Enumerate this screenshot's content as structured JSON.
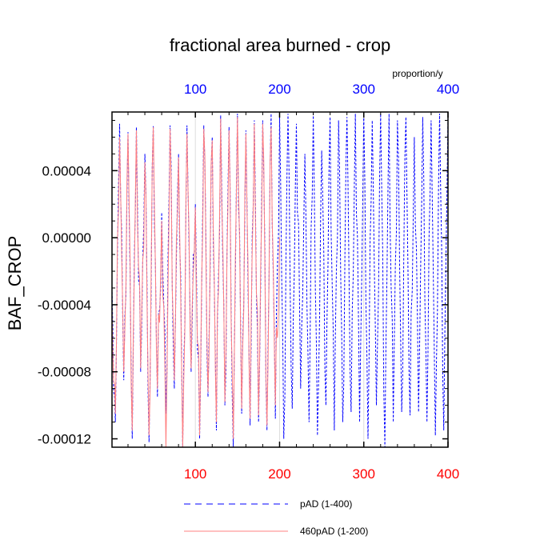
{
  "chart_data": {
    "type": "line",
    "title": "fractional area burned - crop",
    "ylabel": "BAF_CROP",
    "xlabel": "",
    "units_label": "proportion/y",
    "ylim": [
      -0.000125,
      7.5e-05
    ],
    "yticks": [
      {
        "value": 4e-05,
        "label": "0.00004"
      },
      {
        "value": 0.0,
        "label": "0.00000"
      },
      {
        "value": -4e-05,
        "label": "-0.00004"
      },
      {
        "value": -8e-05,
        "label": "-0.00008"
      },
      {
        "value": -0.00012,
        "label": "-0.00012"
      }
    ],
    "bottom_axis": {
      "range": [
        1,
        400
      ],
      "ticks": [
        {
          "value": 100,
          "label": "100"
        },
        {
          "value": 200,
          "label": "200"
        },
        {
          "value": 300,
          "label": "300"
        },
        {
          "value": 400,
          "label": "400"
        }
      ],
      "color": "#ff0000"
    },
    "top_axis": {
      "range": [
        1,
        400
      ],
      "ticks": [
        {
          "value": 100,
          "label": "100"
        },
        {
          "value": 200,
          "label": "200"
        },
        {
          "value": 300,
          "label": "300"
        },
        {
          "value": 400,
          "label": "400"
        }
      ],
      "color": "#0000ff"
    },
    "series": [
      {
        "name": "pAD (1-400)",
        "color": "#0000ff",
        "dash": "dashed",
        "x_range": [
          1,
          400
        ],
        "peaks": [
          [
            10,
            6.8e-05
          ],
          [
            20,
            6.3e-05
          ],
          [
            30,
            6.6e-05
          ],
          [
            40,
            5e-05
          ],
          [
            50,
            6.7e-05
          ],
          [
            60,
            1.5e-05
          ],
          [
            70,
            6.7e-05
          ],
          [
            80,
            5e-05
          ],
          [
            90,
            6.7e-05
          ],
          [
            100,
            2e-05
          ],
          [
            110,
            6.7e-05
          ],
          [
            120,
            6e-05
          ],
          [
            130,
            7.3e-05
          ],
          [
            140,
            6.6e-05
          ],
          [
            150,
            7.4e-05
          ],
          [
            160,
            6.4e-05
          ],
          [
            170,
            7e-05
          ],
          [
            180,
            7e-05
          ],
          [
            190,
            7.4e-05
          ],
          [
            200,
            7.2e-05
          ],
          [
            210,
            7.4e-05
          ],
          [
            220,
            6.8e-05
          ],
          [
            230,
            5e-05
          ],
          [
            240,
            7.4e-05
          ],
          [
            250,
            5.2e-05
          ],
          [
            260,
            7.2e-05
          ],
          [
            270,
            7e-05
          ],
          [
            280,
            7.2e-05
          ],
          [
            290,
            7.4e-05
          ],
          [
            300,
            7.4e-05
          ],
          [
            310,
            7e-05
          ],
          [
            320,
            7.4e-05
          ],
          [
            330,
            7.4e-05
          ],
          [
            340,
            7e-05
          ],
          [
            350,
            7.2e-05
          ],
          [
            360,
            6e-05
          ],
          [
            370,
            7.2e-05
          ],
          [
            380,
            7e-05
          ],
          [
            390,
            7.4e-05
          ],
          [
            400,
            7.2e-05
          ]
        ],
        "troughs": [
          [
            5,
            -0.00011
          ],
          [
            15,
            -8.5e-05
          ],
          [
            25,
            -0.00012
          ],
          [
            35,
            -8e-05
          ],
          [
            45,
            -0.000122
          ],
          [
            55,
            -9.5e-05
          ],
          [
            65,
            -0.000105
          ],
          [
            75,
            -9e-05
          ],
          [
            85,
            -0.000125
          ],
          [
            95,
            -8e-05
          ],
          [
            105,
            -0.00012
          ],
          [
            115,
            -9.5e-05
          ],
          [
            125,
            -0.000115
          ],
          [
            135,
            -0.0001
          ],
          [
            145,
            -0.000125
          ],
          [
            155,
            -0.000105
          ],
          [
            165,
            -0.000112
          ],
          [
            175,
            -0.00011
          ],
          [
            185,
            -0.000115
          ],
          [
            195,
            -0.000108
          ],
          [
            205,
            -0.00012
          ],
          [
            215,
            -0.000102
          ],
          [
            225,
            -9e-05
          ],
          [
            235,
            -0.00011
          ],
          [
            245,
            -0.000118
          ],
          [
            255,
            -0.0001
          ],
          [
            265,
            -0.000115
          ],
          [
            275,
            -0.00011
          ],
          [
            285,
            -0.000104
          ],
          [
            295,
            -0.00011
          ],
          [
            305,
            -0.00012
          ],
          [
            315,
            -0.0001
          ],
          [
            325,
            -0.000125
          ],
          [
            335,
            -0.00011
          ],
          [
            345,
            -0.000104
          ],
          [
            355,
            -0.000106
          ],
          [
            365,
            -0.000104
          ],
          [
            375,
            -0.00011
          ],
          [
            385,
            -0.000118
          ],
          [
            395,
            -0.000115
          ]
        ]
      },
      {
        "name": "460pAD (1-200)",
        "color": "#ff8080",
        "dash": "solid",
        "x_range": [
          1,
          200
        ],
        "peaks": [
          [
            10,
            6e-05
          ],
          [
            20,
            6.2e-05
          ],
          [
            30,
            6.4e-05
          ],
          [
            40,
            4.5e-05
          ],
          [
            50,
            6.6e-05
          ],
          [
            60,
            1e-05
          ],
          [
            70,
            6.5e-05
          ],
          [
            80,
            4.8e-05
          ],
          [
            90,
            6.2e-05
          ],
          [
            100,
            1.8e-05
          ],
          [
            110,
            6.5e-05
          ],
          [
            120,
            5.8e-05
          ],
          [
            130,
            7.1e-05
          ],
          [
            140,
            6.4e-05
          ],
          [
            150,
            7.2e-05
          ],
          [
            160,
            6.2e-05
          ],
          [
            170,
            6.8e-05
          ],
          [
            180,
            6.8e-05
          ],
          [
            190,
            6.6e-05
          ],
          [
            200,
            0.0
          ]
        ],
        "troughs": [
          [
            5,
            -0.000105
          ],
          [
            15,
            -8e-05
          ],
          [
            25,
            -0.000115
          ],
          [
            35,
            -7.8e-05
          ],
          [
            45,
            -0.000118
          ],
          [
            55,
            -9e-05
          ],
          [
            65,
            -0.000125
          ],
          [
            75,
            -8.5e-05
          ],
          [
            85,
            -0.000125
          ],
          [
            95,
            -7.8e-05
          ],
          [
            105,
            -0.000118
          ],
          [
            115,
            -9.2e-05
          ],
          [
            125,
            -0.00011
          ],
          [
            135,
            -9.8e-05
          ],
          [
            145,
            -0.00012
          ],
          [
            155,
            -0.000102
          ],
          [
            165,
            -0.000108
          ],
          [
            175,
            -0.000106
          ],
          [
            185,
            -0.000112
          ],
          [
            195,
            -0.0001
          ]
        ]
      }
    ],
    "legend_position": "bottom"
  }
}
